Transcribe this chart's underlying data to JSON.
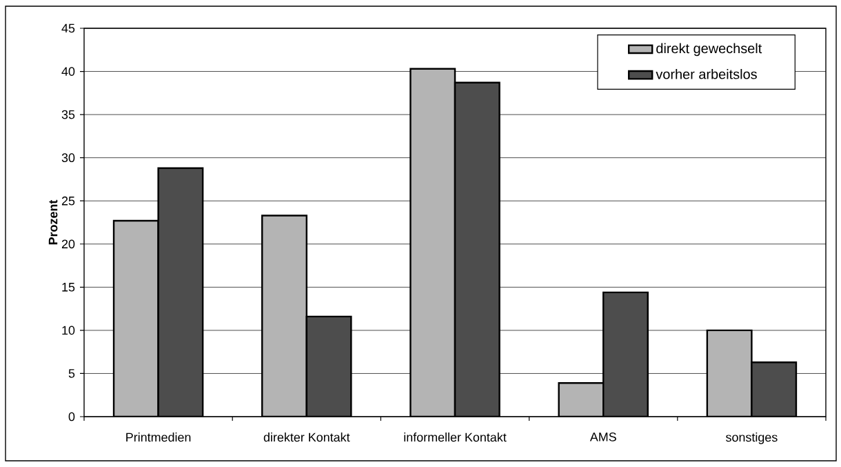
{
  "chart_data": {
    "type": "bar",
    "ylabel": "Prozent",
    "categories": [
      "Printmedien",
      "direkter Kontakt",
      "informeller Kontakt",
      "AMS",
      "sonstiges"
    ],
    "series": [
      {
        "name": "direkt gewechselt",
        "color": "#b4b4b4",
        "values": [
          22.7,
          23.3,
          40.3,
          3.9,
          10.0
        ]
      },
      {
        "name": "vorher arbeitslos",
        "color": "#4d4d4d",
        "values": [
          28.8,
          11.6,
          38.7,
          14.4,
          6.3
        ]
      }
    ],
    "ylim": [
      0,
      45
    ],
    "yticks": [
      0,
      5,
      10,
      15,
      20,
      25,
      30,
      35,
      40,
      45
    ],
    "grid": "y",
    "legend": "top right"
  }
}
